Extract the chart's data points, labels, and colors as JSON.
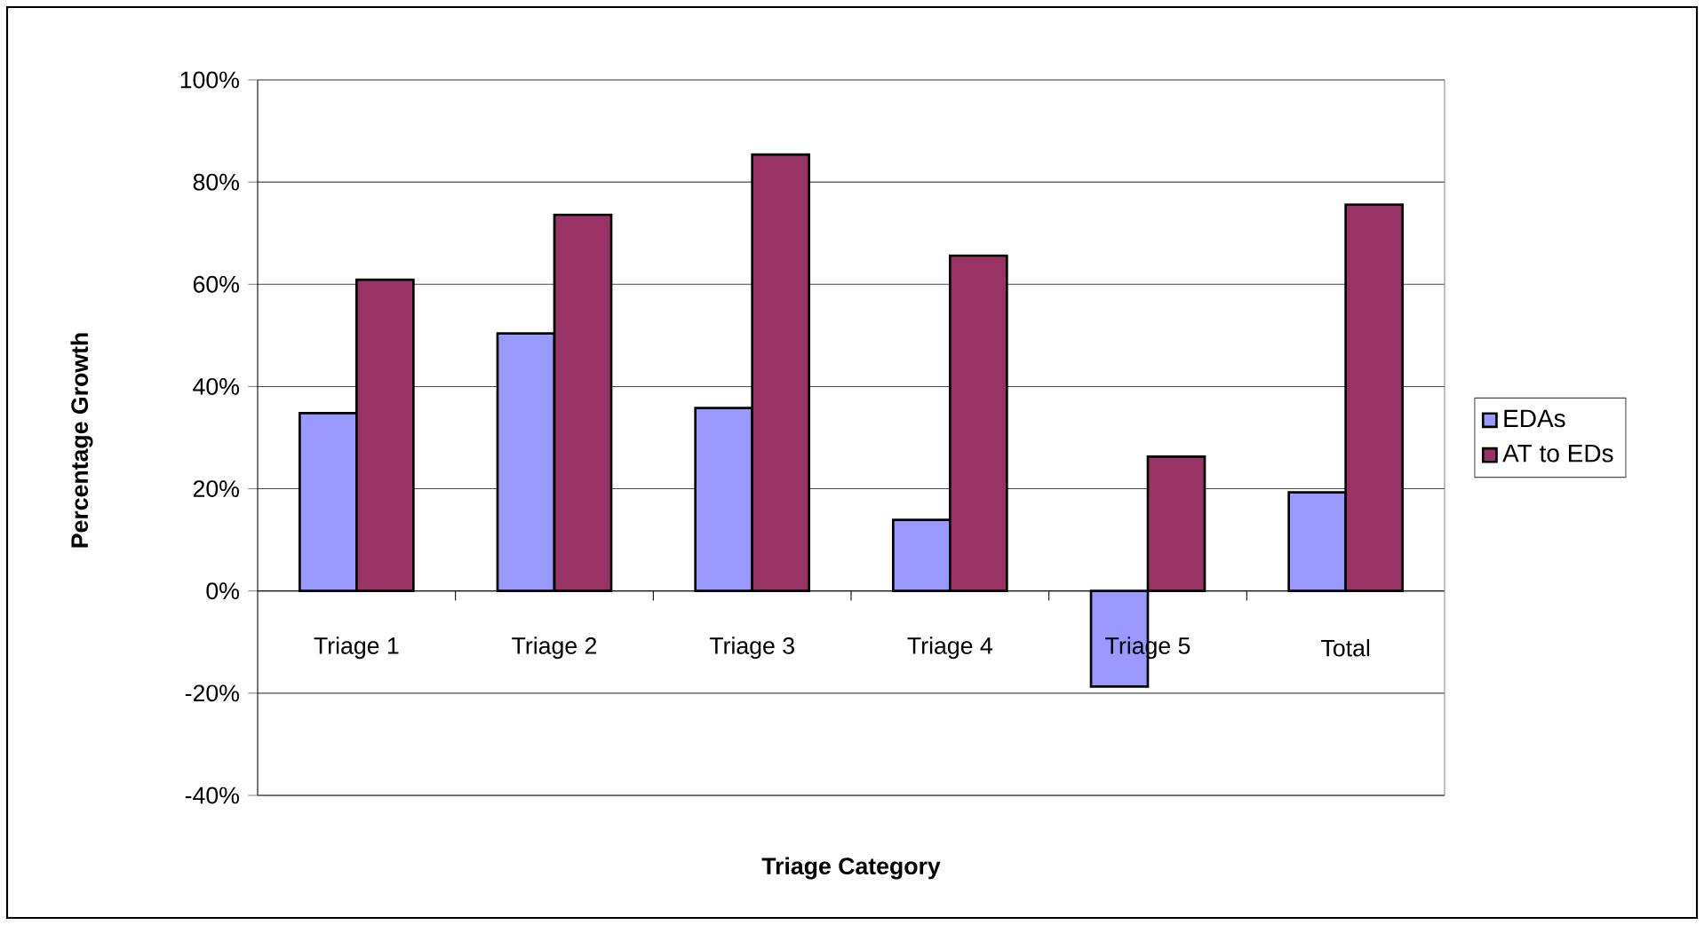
{
  "chart_data": {
    "type": "bar",
    "xlabel": "Triage Category",
    "ylabel": "Percentage Growth",
    "categories": [
      "Triage 1",
      "Triage 2",
      "Triage 3",
      "Triage 4",
      "Triage 5",
      "Total"
    ],
    "series": [
      {
        "name": "EDAs",
        "color": "#9999ff",
        "values": [
          34.8,
          50.4,
          35.8,
          13.9,
          -18.7,
          19.3
        ]
      },
      {
        "name": "AT to EDs",
        "color": "#993366",
        "values": [
          60.9,
          73.6,
          85.4,
          65.6,
          26.3,
          75.6
        ]
      }
    ],
    "ylim": [
      -40,
      100
    ],
    "yticks": [
      {
        "value": -40,
        "label": "-40%"
      },
      {
        "value": -20,
        "label": "-20%"
      },
      {
        "value": 0,
        "label": "0%"
      },
      {
        "value": 20,
        "label": "20%"
      },
      {
        "value": 40,
        "label": "40%"
      },
      {
        "value": 60,
        "label": "60%"
      },
      {
        "value": 80,
        "label": "80%"
      },
      {
        "value": 100,
        "label": "100%"
      }
    ],
    "grid": "y",
    "legend": "right"
  }
}
